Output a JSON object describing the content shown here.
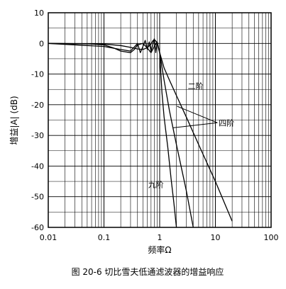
{
  "caption": "图 20-6 切比雪夫低通滤波器的增益响应",
  "chart_data": {
    "type": "line",
    "title": "",
    "xlabel": "频率Ω",
    "ylabel": "增益|A| (dB)",
    "x_scale": "log",
    "xlim": [
      0.01,
      100
    ],
    "ylim": [
      -60,
      10
    ],
    "grid": true,
    "x_ticks": [
      {
        "value": 0.01,
        "label": "0.01"
      },
      {
        "value": 0.1,
        "label": "0.1"
      },
      {
        "value": 1,
        "label": "1"
      },
      {
        "value": 10,
        "label": "10"
      },
      {
        "value": 100,
        "label": "100"
      }
    ],
    "y_ticks": [
      {
        "value": 10,
        "label": "10"
      },
      {
        "value": 0,
        "label": "0"
      },
      {
        "value": -10,
        "label": "-10"
      },
      {
        "value": -20,
        "label": "-20"
      },
      {
        "value": -30,
        "label": "-30"
      },
      {
        "value": -40,
        "label": "-40"
      },
      {
        "value": -50,
        "label": "-50"
      },
      {
        "value": -60,
        "label": "-60"
      }
    ],
    "series": [
      {
        "name": "二阶",
        "x": [
          0.01,
          0.1,
          0.2,
          0.3,
          0.4,
          0.5,
          0.6,
          0.7,
          0.75,
          0.8,
          0.9,
          1.0,
          1.2,
          1.5,
          2,
          3,
          5,
          10,
          20
        ],
        "y": [
          0,
          -0.2,
          -0.7,
          -1.3,
          -1.8,
          -2.0,
          -1.4,
          -0.2,
          0.8,
          1.3,
          0.3,
          -3.0,
          -8.0,
          -12.0,
          -17.0,
          -24.0,
          -33.0,
          -45.0,
          -58.0
        ]
      },
      {
        "name": "四阶",
        "x": [
          0.01,
          0.05,
          0.1,
          0.15,
          0.2,
          0.3,
          0.35,
          0.4,
          0.5,
          0.6,
          0.7,
          0.8,
          0.9,
          1.0,
          1.2,
          1.5,
          2,
          3,
          4
        ],
        "y": [
          0,
          -0.1,
          -0.5,
          -1.5,
          -2.5,
          -3.0,
          -2.0,
          -0.5,
          0,
          -1.5,
          -3.0,
          -1.0,
          0.5,
          -3.0,
          -12.0,
          -22.0,
          -33.0,
          -48.0,
          -60.0
        ]
      },
      {
        "name": "九阶",
        "x": [
          0.01,
          0.1,
          0.2,
          0.3,
          0.4,
          0.45,
          0.5,
          0.55,
          0.6,
          0.65,
          0.7,
          0.75,
          0.8,
          0.85,
          0.9,
          0.95,
          1.0,
          1.1,
          1.2,
          1.4,
          1.6,
          1.8,
          2.0
        ],
        "y": [
          0,
          -1.0,
          -2.0,
          -2.5,
          0,
          -3.0,
          -1.0,
          1.0,
          -2.0,
          0.5,
          -2.5,
          -0.5,
          1.5,
          -3.0,
          0.5,
          -1.5,
          -3.0,
          -16.0,
          -24.0,
          -34.0,
          -44.0,
          -52.0,
          -60.0
        ]
      }
    ],
    "annotations": [
      {
        "text": "二阶",
        "x": 3.2,
        "y": -14.8
      },
      {
        "text": "四阶",
        "x": 11.5,
        "y": -26.8
      },
      {
        "text": "九阶",
        "x": 0.62,
        "y": -47.0
      }
    ]
  }
}
